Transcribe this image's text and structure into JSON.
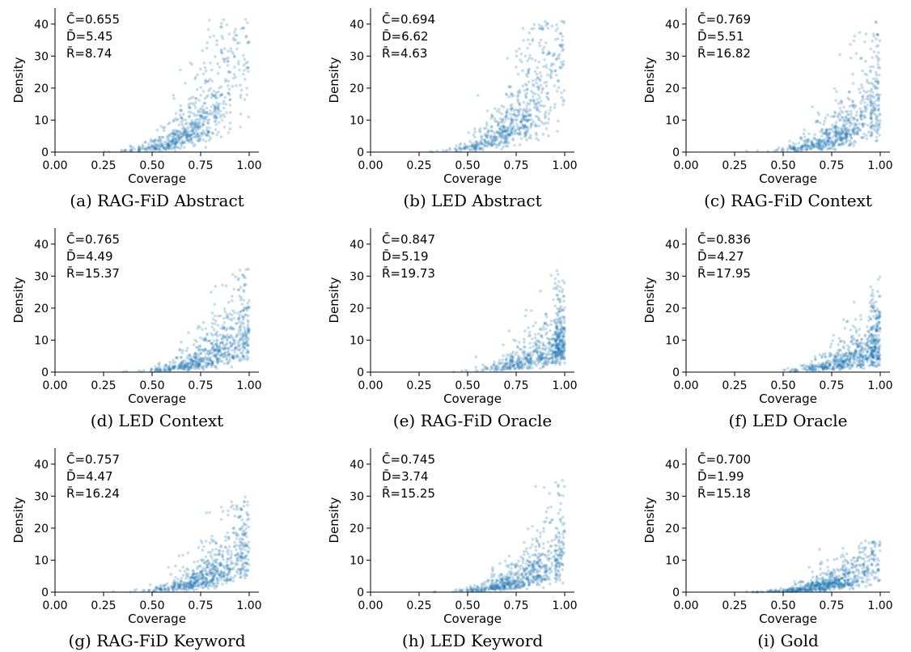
{
  "figure": {
    "xlabel": "Coverage",
    "ylabel": "Density",
    "point_color": "#1f77b4",
    "x_ticks": [
      "0.00",
      "0.25",
      "0.50",
      "0.75",
      "1.00"
    ],
    "y_ticks": [
      "0",
      "10",
      "20",
      "30",
      "40"
    ]
  },
  "chart_data": [
    {
      "type": "scatter",
      "caption": "(a) RAG-FiD Abstract",
      "stats": [
        "C̄=0.655",
        "D̄=5.45",
        "R̄=8.74"
      ],
      "xlabel": "Coverage",
      "ylabel": "Density",
      "xlim": [
        0,
        1.05
      ],
      "ylim": [
        0,
        45
      ],
      "grid": false,
      "summary": {
        "mean_coverage": 0.655,
        "mean_density": 5.45,
        "max_density_approx": 42
      }
    },
    {
      "type": "scatter",
      "caption": "(b) LED Abstract",
      "stats": [
        "C̄=0.694",
        "D̄=6.62",
        "R̄=4.63"
      ],
      "xlabel": "Coverage",
      "ylabel": "Density",
      "xlim": [
        0,
        1.05
      ],
      "ylim": [
        0,
        45
      ],
      "grid": false,
      "summary": {
        "mean_coverage": 0.694,
        "mean_density": 6.62,
        "max_density_approx": 41
      }
    },
    {
      "type": "scatter",
      "caption": "(c) RAG-FiD Context",
      "stats": [
        "C̄=0.769",
        "D̄=5.51",
        "R̄=16.82"
      ],
      "xlabel": "Coverage",
      "ylabel": "Density",
      "xlim": [
        0,
        1.05
      ],
      "ylim": [
        0,
        45
      ],
      "grid": false,
      "summary": {
        "mean_coverage": 0.769,
        "mean_density": 5.51,
        "max_density_approx": 41
      }
    },
    {
      "type": "scatter",
      "caption": "(d) LED Context",
      "stats": [
        "C̄=0.765",
        "D̄=4.49",
        "R̄=15.37"
      ],
      "xlabel": "Coverage",
      "ylabel": "Density",
      "xlim": [
        0,
        1.05
      ],
      "ylim": [
        0,
        45
      ],
      "grid": false,
      "summary": {
        "mean_coverage": 0.765,
        "mean_density": 4.49,
        "max_density_approx": 33
      }
    },
    {
      "type": "scatter",
      "caption": "(e) RAG-FiD Oracle",
      "stats": [
        "C̄=0.847",
        "D̄=5.19",
        "R̄=19.73"
      ],
      "xlabel": "Coverage",
      "ylabel": "Density",
      "xlim": [
        0,
        1.05
      ],
      "ylim": [
        0,
        45
      ],
      "grid": false,
      "summary": {
        "mean_coverage": 0.847,
        "mean_density": 5.19,
        "max_density_approx": 32
      }
    },
    {
      "type": "scatter",
      "caption": "(f) LED Oracle",
      "stats": [
        "C̄=0.836",
        "D̄=4.27",
        "R̄=17.95"
      ],
      "xlabel": "Coverage",
      "ylabel": "Density",
      "xlim": [
        0,
        1.05
      ],
      "ylim": [
        0,
        45
      ],
      "grid": false,
      "summary": {
        "mean_coverage": 0.836,
        "mean_density": 4.27,
        "max_density_approx": 32
      }
    },
    {
      "type": "scatter",
      "caption": "(g) RAG-FiD Keyword",
      "stats": [
        "C̄=0.757",
        "D̄=4.47",
        "R̄=16.24"
      ],
      "xlabel": "Coverage",
      "ylabel": "Density",
      "xlim": [
        0,
        1.05
      ],
      "ylim": [
        0,
        45
      ],
      "grid": false,
      "summary": {
        "mean_coverage": 0.757,
        "mean_density": 4.47,
        "max_density_approx": 30
      }
    },
    {
      "type": "scatter",
      "caption": "(h) LED Keyword",
      "stats": [
        "C̄=0.745",
        "D̄=3.74",
        "R̄=15.25"
      ],
      "xlabel": "Coverage",
      "ylabel": "Density",
      "xlim": [
        0,
        1.05
      ],
      "ylim": [
        0,
        45
      ],
      "grid": false,
      "summary": {
        "mean_coverage": 0.745,
        "mean_density": 3.74,
        "max_density_approx": 37
      }
    },
    {
      "type": "scatter",
      "caption": "(i) Gold",
      "stats": [
        "C̄=0.700",
        "D̄=1.99",
        "R̄=15.18"
      ],
      "xlabel": "Coverage",
      "ylabel": "Density",
      "xlim": [
        0,
        1.05
      ],
      "ylim": [
        0,
        45
      ],
      "grid": false,
      "summary": {
        "mean_coverage": 0.7,
        "mean_density": 1.99,
        "max_density_approx": 16
      }
    }
  ]
}
